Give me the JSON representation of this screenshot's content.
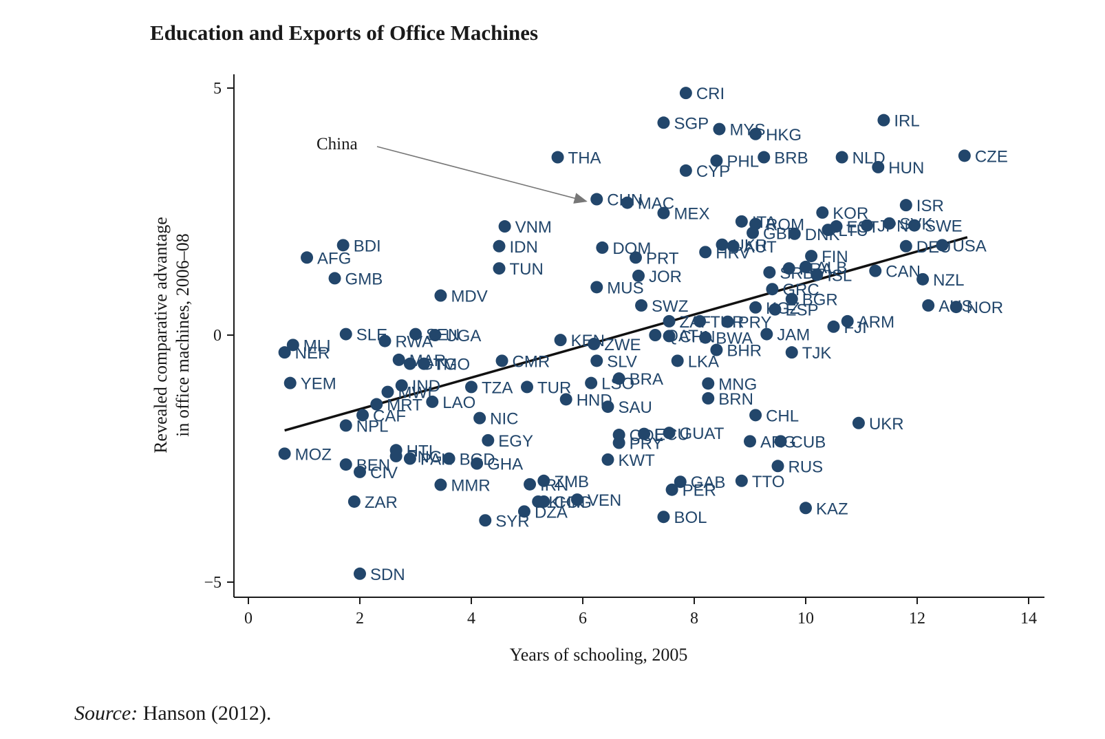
{
  "page": {
    "title": "Education and Exports of Office Machines",
    "source_label": "Source:",
    "source_text": " Hanson (2012)."
  },
  "colors": {
    "point": "#22466b",
    "axis": "#1a1a1a",
    "fit_line": "#111111",
    "annotation_arrow": "#777777"
  },
  "chart_data": {
    "type": "scatter",
    "title": "Education and Exports of Office Machines",
    "xlabel": "Years of schooling, 2005",
    "ylabel_line1": "Revealed comparative advantage",
    "ylabel_line2": "in office machines, 2006–08",
    "xlim": [
      -0.3,
      14.2
    ],
    "ylim": [
      -5.3,
      5.3
    ],
    "xticks": [
      0,
      2,
      4,
      6,
      8,
      10,
      12,
      14
    ],
    "yticks": [
      -5,
      0,
      5
    ],
    "ytick_labels": [
      "−5",
      "0",
      "5"
    ],
    "grid": false,
    "legend": "none",
    "fit_line": {
      "x": [
        0.65,
        12.9
      ],
      "y": [
        -1.93,
        1.98
      ]
    },
    "annotation": {
      "text": "China",
      "target": "CHN"
    },
    "points": [
      {
        "label": "CRI",
        "x": 7.85,
        "y": 4.9
      },
      {
        "label": "IRL",
        "x": 11.4,
        "y": 4.35
      },
      {
        "label": "SGP",
        "x": 7.45,
        "y": 4.3
      },
      {
        "label": "MYS",
        "x": 8.45,
        "y": 4.17
      },
      {
        "label": "HKG",
        "x": 9.1,
        "y": 4.07
      },
      {
        "label": "THA",
        "x": 5.55,
        "y": 3.6
      },
      {
        "label": "PHL",
        "x": 8.4,
        "y": 3.53
      },
      {
        "label": "BRB",
        "x": 9.25,
        "y": 3.6
      },
      {
        "label": "NLD",
        "x": 10.65,
        "y": 3.6
      },
      {
        "label": "CZE",
        "x": 12.85,
        "y": 3.63
      },
      {
        "label": "CYP",
        "x": 7.85,
        "y": 3.33
      },
      {
        "label": "HUN",
        "x": 11.3,
        "y": 3.4
      },
      {
        "label": "CHN",
        "x": 6.25,
        "y": 2.75
      },
      {
        "label": "MAC",
        "x": 6.8,
        "y": 2.68
      },
      {
        "label": "ISR",
        "x": 11.8,
        "y": 2.63
      },
      {
        "label": "MEX",
        "x": 7.45,
        "y": 2.47
      },
      {
        "label": "KOR",
        "x": 10.3,
        "y": 2.48
      },
      {
        "label": "SVK",
        "x": 11.5,
        "y": 2.26
      },
      {
        "label": "SWE",
        "x": 11.95,
        "y": 2.22
      },
      {
        "label": "ITA",
        "x": 8.85,
        "y": 2.3
      },
      {
        "label": "ROM",
        "x": 9.1,
        "y": 2.25
      },
      {
        "label": "EST",
        "x": 10.55,
        "y": 2.2
      },
      {
        "label": "LTU",
        "x": 10.4,
        "y": 2.13
      },
      {
        "label": "JPN",
        "x": 11.1,
        "y": 2.22
      },
      {
        "label": "VNM",
        "x": 4.6,
        "y": 2.2
      },
      {
        "label": "GBR",
        "x": 9.05,
        "y": 2.07
      },
      {
        "label": "DNK",
        "x": 9.8,
        "y": 2.05
      },
      {
        "label": "DEU",
        "x": 11.8,
        "y": 1.8
      },
      {
        "label": "USA",
        "x": 12.45,
        "y": 1.82
      },
      {
        "label": "BDI",
        "x": 1.7,
        "y": 1.82
      },
      {
        "label": "IDN",
        "x": 4.5,
        "y": 1.8
      },
      {
        "label": "DOM",
        "x": 6.35,
        "y": 1.77
      },
      {
        "label": "UKR",
        "x": 8.5,
        "y": 1.83
      },
      {
        "label": "AUT",
        "x": 8.7,
        "y": 1.8
      },
      {
        "label": "HRV",
        "x": 8.2,
        "y": 1.68
      },
      {
        "label": "AFG",
        "x": 1.05,
        "y": 1.57
      },
      {
        "label": "PRT",
        "x": 6.95,
        "y": 1.57
      },
      {
        "label": "FIN",
        "x": 10.1,
        "y": 1.6
      },
      {
        "label": "TUN",
        "x": 4.5,
        "y": 1.35
      },
      {
        "label": "GMB",
        "x": 1.55,
        "y": 1.15
      },
      {
        "label": "JOR",
        "x": 7.0,
        "y": 1.2
      },
      {
        "label": "CAN",
        "x": 11.25,
        "y": 1.3
      },
      {
        "label": "NZL",
        "x": 12.1,
        "y": 1.13
      },
      {
        "label": "SRB",
        "x": 9.35,
        "y": 1.27
      },
      {
        "label": "FRA",
        "x": 9.7,
        "y": 1.35
      },
      {
        "label": "ALB",
        "x": 10.0,
        "y": 1.38
      },
      {
        "label": "ISL",
        "x": 10.2,
        "y": 1.22
      },
      {
        "label": "MUS",
        "x": 6.25,
        "y": 0.97
      },
      {
        "label": "GRC",
        "x": 9.4,
        "y": 0.93
      },
      {
        "label": "MDV",
        "x": 3.45,
        "y": 0.8
      },
      {
        "label": "BGR",
        "x": 9.75,
        "y": 0.73
      },
      {
        "label": "SWZ",
        "x": 7.05,
        "y": 0.6
      },
      {
        "label": "KGZ",
        "x": 9.1,
        "y": 0.56
      },
      {
        "label": "ESP",
        "x": 9.45,
        "y": 0.52
      },
      {
        "label": "AUS",
        "x": 12.2,
        "y": 0.6
      },
      {
        "label": "NOR",
        "x": 12.7,
        "y": 0.57
      },
      {
        "label": "ARM",
        "x": 10.75,
        "y": 0.28
      },
      {
        "label": "FJI",
        "x": 10.5,
        "y": 0.17
      },
      {
        "label": "ZAF",
        "x": 7.55,
        "y": 0.28
      },
      {
        "label": "TUR",
        "x": 8.1,
        "y": 0.28
      },
      {
        "label": "PRY",
        "x": 8.6,
        "y": 0.27
      },
      {
        "label": "SLE",
        "x": 1.75,
        "y": 0.02
      },
      {
        "label": "SEN",
        "x": 3.0,
        "y": 0.02
      },
      {
        "label": "UGA",
        "x": 3.35,
        "y": 0.0
      },
      {
        "label": "JAM",
        "x": 9.3,
        "y": 0.02
      },
      {
        "label": "QAT",
        "x": 7.3,
        "y": 0.0
      },
      {
        "label": "CHN2",
        "x": 7.55,
        "y": -0.02
      },
      {
        "label": "BWA",
        "x": 8.2,
        "y": -0.05
      },
      {
        "label": "KEN",
        "x": 5.6,
        "y": -0.1
      },
      {
        "label": "RWA",
        "x": 2.45,
        "y": -0.12
      },
      {
        "label": "MLI",
        "x": 0.8,
        "y": -0.2
      },
      {
        "label": "ZWE",
        "x": 6.2,
        "y": -0.18
      },
      {
        "label": "NER",
        "x": 0.65,
        "y": -0.35
      },
      {
        "label": "BHR",
        "x": 8.4,
        "y": -0.3
      },
      {
        "label": "TJK",
        "x": 9.75,
        "y": -0.35
      },
      {
        "label": "MAR",
        "x": 2.7,
        "y": -0.5
      },
      {
        "label": "LKA",
        "x": 7.7,
        "y": -0.52
      },
      {
        "label": "SLV",
        "x": 6.25,
        "y": -0.52
      },
      {
        "label": "CMR",
        "x": 4.55,
        "y": -0.52
      },
      {
        "label": "GTM",
        "x": 2.9,
        "y": -0.58
      },
      {
        "label": "TGO",
        "x": 3.15,
        "y": -0.58
      },
      {
        "label": "BRA",
        "x": 6.65,
        "y": -0.88
      },
      {
        "label": "YEM",
        "x": 0.75,
        "y": -0.97
      },
      {
        "label": "LSO",
        "x": 6.15,
        "y": -0.97
      },
      {
        "label": "MNG",
        "x": 8.25,
        "y": -0.98
      },
      {
        "label": "IND",
        "x": 2.75,
        "y": -1.02
      },
      {
        "label": "TZA",
        "x": 4.0,
        "y": -1.05
      },
      {
        "label": "TUR2",
        "x": 5.0,
        "y": -1.05
      },
      {
        "label": "MWI",
        "x": 2.5,
        "y": -1.15
      },
      {
        "label": "HND",
        "x": 5.7,
        "y": -1.3
      },
      {
        "label": "BRN",
        "x": 8.25,
        "y": -1.28
      },
      {
        "label": "LAO",
        "x": 3.3,
        "y": -1.35
      },
      {
        "label": "MRT",
        "x": 2.3,
        "y": -1.4
      },
      {
        "label": "SAU",
        "x": 6.45,
        "y": -1.45
      },
      {
        "label": "CAF",
        "x": 2.05,
        "y": -1.62
      },
      {
        "label": "CHL",
        "x": 9.1,
        "y": -1.62
      },
      {
        "label": "NIC",
        "x": 4.15,
        "y": -1.68
      },
      {
        "label": "NPL",
        "x": 1.75,
        "y": -1.83
      },
      {
        "label": "UKR2",
        "x": 10.95,
        "y": -1.78
      },
      {
        "label": "COL",
        "x": 6.65,
        "y": -2.02
      },
      {
        "label": "ECU",
        "x": 7.1,
        "y": -2.0
      },
      {
        "label": "GUAT",
        "x": 7.55,
        "y": -1.98
      },
      {
        "label": "EGY",
        "x": 4.3,
        "y": -2.13
      },
      {
        "label": "PRY2",
        "x": 6.65,
        "y": -2.18
      },
      {
        "label": "ARG",
        "x": 9.0,
        "y": -2.15
      },
      {
        "label": "CUB",
        "x": 9.55,
        "y": -2.15
      },
      {
        "label": "MOZ",
        "x": 0.65,
        "y": -2.4
      },
      {
        "label": "HTI",
        "x": 2.65,
        "y": -2.33
      },
      {
        "label": "PNG",
        "x": 2.65,
        "y": -2.45
      },
      {
        "label": "PAK",
        "x": 2.9,
        "y": -2.5
      },
      {
        "label": "BGD",
        "x": 3.6,
        "y": -2.5
      },
      {
        "label": "KWT",
        "x": 6.45,
        "y": -2.52
      },
      {
        "label": "BEN",
        "x": 1.75,
        "y": -2.62
      },
      {
        "label": "GHA",
        "x": 4.1,
        "y": -2.6
      },
      {
        "label": "RUS",
        "x": 9.5,
        "y": -2.65
      },
      {
        "label": "CIV",
        "x": 2.0,
        "y": -2.77
      },
      {
        "label": "ZMB",
        "x": 5.3,
        "y": -2.95
      },
      {
        "label": "IRN",
        "x": 5.05,
        "y": -3.02
      },
      {
        "label": "MMR",
        "x": 3.45,
        "y": -3.03
      },
      {
        "label": "GAB",
        "x": 7.75,
        "y": -2.97
      },
      {
        "label": "TTO",
        "x": 8.85,
        "y": -2.95
      },
      {
        "label": "PER",
        "x": 7.6,
        "y": -3.13
      },
      {
        "label": "ZAR",
        "x": 1.9,
        "y": -3.37
      },
      {
        "label": "KHM",
        "x": 5.2,
        "y": -3.37
      },
      {
        "label": "COG",
        "x": 5.3,
        "y": -3.37
      },
      {
        "label": "VEN",
        "x": 5.9,
        "y": -3.33
      },
      {
        "label": "KAZ",
        "x": 10.0,
        "y": -3.5
      },
      {
        "label": "DZA",
        "x": 4.95,
        "y": -3.57
      },
      {
        "label": "BOL",
        "x": 7.45,
        "y": -3.68
      },
      {
        "label": "SYR",
        "x": 4.25,
        "y": -3.75
      },
      {
        "label": "SDN",
        "x": 2.0,
        "y": -4.83
      }
    ]
  }
}
